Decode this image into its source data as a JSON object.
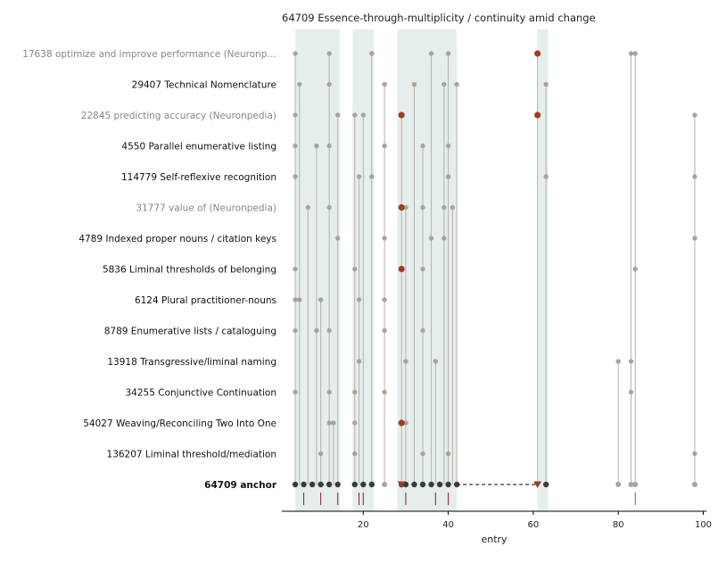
{
  "chart_data": {
    "type": "scatter",
    "title": "64709  Essence-through-multiplicity / continuity amid change",
    "xlabel": "entry",
    "ylabel": "",
    "xlim": [
      0,
      100
    ],
    "x_ticks": [
      20,
      40,
      60,
      80,
      100
    ],
    "grid": false,
    "colors": {
      "point": "#a8a49c",
      "stem": "#b5b1aa",
      "highlight": "#a13d1d",
      "anchor": "#3b3b3b",
      "band": "#e5eeed",
      "muted_label": "#8a857e",
      "rug_dark": "#8b1a1a",
      "rug_light": "#7a6a1a"
    },
    "shaded_ranges": [
      [
        4,
        14.5
      ],
      [
        17.5,
        22.5
      ],
      [
        28,
        42
      ],
      [
        61,
        63.5
      ]
    ],
    "rows": [
      {
        "label": "17638  optimize and improve performance (Neuronp…",
        "muted": true,
        "x": [
          4,
          12,
          22,
          36,
          40,
          83,
          84
        ],
        "highlight": [
          61
        ]
      },
      {
        "label": "29407  Technical Nomenclature",
        "muted": false,
        "x": [
          5,
          12,
          25,
          32,
          39,
          42,
          63
        ],
        "highlight": []
      },
      {
        "label": "22845  predicting accuracy (Neuronpedia)",
        "muted": true,
        "x": [
          4,
          14,
          18,
          20,
          98
        ],
        "highlight": [
          29,
          61
        ]
      },
      {
        "label": "4550  Parallel enumerative listing",
        "muted": false,
        "x": [
          4,
          9,
          12,
          25,
          34,
          40
        ],
        "highlight": []
      },
      {
        "label": "114779  Self-reflexive recognition",
        "muted": false,
        "x": [
          4,
          19,
          22,
          40,
          63,
          98
        ],
        "highlight": []
      },
      {
        "label": "31777  value of (Neuronpedia)",
        "muted": true,
        "x": [
          7,
          12,
          30,
          34,
          39,
          41
        ],
        "highlight": [
          29
        ]
      },
      {
        "label": "4789  Indexed proper nouns / citation keys",
        "muted": false,
        "x": [
          14,
          25,
          36,
          39,
          98
        ],
        "highlight": []
      },
      {
        "label": "5836  Liminal thresholds of belonging",
        "muted": false,
        "x": [
          4,
          18,
          34,
          84
        ],
        "highlight": [
          29
        ]
      },
      {
        "label": "6124  Plural practitioner-nouns",
        "muted": false,
        "x": [
          4,
          5,
          10,
          19,
          25
        ],
        "highlight": []
      },
      {
        "label": "8789  Enumerative lists / cataloguing",
        "muted": false,
        "x": [
          4,
          9,
          12,
          25,
          34
        ],
        "highlight": []
      },
      {
        "label": "13918  Transgressive/liminal naming",
        "muted": false,
        "x": [
          19,
          30,
          37,
          80,
          83
        ],
        "highlight": []
      },
      {
        "label": "34255  Conjunctive Continuation",
        "muted": false,
        "x": [
          4,
          12,
          18,
          25,
          83
        ],
        "highlight": []
      },
      {
        "label": "54027  Weaving/Reconciling Two Into One",
        "muted": false,
        "x": [
          12,
          13,
          18,
          30
        ],
        "highlight": [
          29
        ]
      },
      {
        "label": "136207  Liminal threshold/mediation",
        "muted": false,
        "x": [
          10,
          18,
          34,
          40,
          98
        ],
        "highlight": []
      }
    ],
    "anchor": {
      "label": "64709  anchor",
      "x_dark": [
        4,
        6,
        8,
        10,
        12,
        14,
        18,
        20,
        22,
        29,
        30,
        32,
        34,
        36,
        38,
        40,
        42,
        63
      ],
      "x_light": [
        25,
        80,
        83,
        84,
        98
      ],
      "markers": [
        29,
        61
      ],
      "dashed_to": 61
    },
    "rug": {
      "dark": [
        6,
        10,
        14,
        19,
        20,
        30,
        37,
        40
      ],
      "light": [
        84
      ]
    }
  }
}
